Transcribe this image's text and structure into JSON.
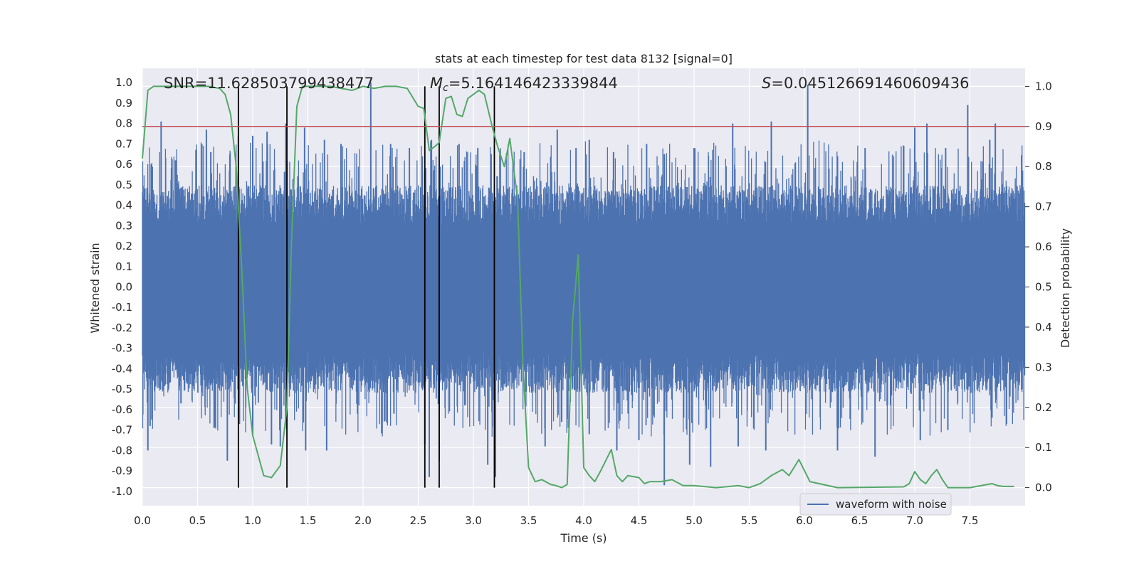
{
  "chart_data": {
    "type": "line",
    "title": "stats at each timestep for test data 8132 [signal=0]",
    "xlabel": "Time (s)",
    "ylabel_left": "Whitened strain",
    "ylabel_right": "Detection probability",
    "xlim": [
      0.0,
      8.0
    ],
    "ylim_left": [
      -1.07,
      1.07
    ],
    "ylim_right": [
      -0.045,
      1.045
    ],
    "x_ticks": [
      "0.0",
      "0.5",
      "1.0",
      "1.5",
      "2.0",
      "2.5",
      "3.0",
      "3.5",
      "4.0",
      "4.5",
      "5.0",
      "5.5",
      "6.0",
      "6.5",
      "7.0",
      "7.5"
    ],
    "left_ticks": [
      "1.0",
      "0.9",
      "0.8",
      "0.7",
      "0.6",
      "0.5",
      "0.4",
      "0.3",
      "0.2",
      "0.1",
      "0.0",
      "-0.1",
      "-0.2",
      "-0.3",
      "-0.4",
      "-0.5",
      "-0.6",
      "-0.7",
      "-0.8",
      "-0.9",
      "-1.0"
    ],
    "right_ticks": [
      "1.0",
      "0.9",
      "0.8",
      "0.7",
      "0.6",
      "0.5",
      "0.4",
      "0.3",
      "0.2",
      "0.1",
      "0.0"
    ],
    "annotations": {
      "snr": "SNR=11.628503799438477",
      "mc_symbol": "M",
      "mc_sub": "c",
      "mc_value": "=5.164146423339844",
      "s_symbol": "S",
      "s_value": "=0.045126691460609436"
    },
    "legend": {
      "label": "waveform with noise",
      "position": "lower-right"
    },
    "threshold": {
      "value": 0.9,
      "axis": "right",
      "color": "#c44e52"
    },
    "vlines": [
      0.87,
      1.31,
      2.56,
      2.69,
      3.19
    ],
    "waveform": {
      "name": "waveform with noise",
      "color": "#4c72b0",
      "note": "dense noise band, envelope approx. +/-0.4 with spikes",
      "spikes": [
        {
          "t": 0.08,
          "v": 0.6
        },
        {
          "t": 0.17,
          "v": 0.81
        },
        {
          "t": 0.3,
          "v": 0.62
        },
        {
          "t": 0.58,
          "v": 0.77
        },
        {
          "t": 0.62,
          "v": 0.66
        },
        {
          "t": 0.87,
          "v": 0.74
        },
        {
          "t": 1.0,
          "v": 0.74
        },
        {
          "t": 1.13,
          "v": 0.76
        },
        {
          "t": 1.3,
          "v": 0.8
        },
        {
          "t": 1.47,
          "v": 0.78
        },
        {
          "t": 1.65,
          "v": 0.72
        },
        {
          "t": 1.8,
          "v": 0.7
        },
        {
          "t": 2.07,
          "v": 1.0
        },
        {
          "t": 2.25,
          "v": 0.7
        },
        {
          "t": 2.42,
          "v": 0.68
        },
        {
          "t": 2.62,
          "v": 0.72
        },
        {
          "t": 2.87,
          "v": 0.7
        },
        {
          "t": 3.04,
          "v": 0.68
        },
        {
          "t": 3.24,
          "v": 0.65
        },
        {
          "t": 3.46,
          "v": 0.66
        },
        {
          "t": 3.76,
          "v": 0.77
        },
        {
          "t": 3.93,
          "v": 0.68
        },
        {
          "t": 4.05,
          "v": 0.72
        },
        {
          "t": 4.27,
          "v": 0.66
        },
        {
          "t": 4.57,
          "v": 0.7
        },
        {
          "t": 4.73,
          "v": 0.65
        },
        {
          "t": 5.0,
          "v": 0.68
        },
        {
          "t": 5.35,
          "v": 0.8
        },
        {
          "t": 5.7,
          "v": 0.81
        },
        {
          "t": 6.03,
          "v": 0.99
        },
        {
          "t": 6.3,
          "v": 0.64
        },
        {
          "t": 6.55,
          "v": 0.68
        },
        {
          "t": 6.9,
          "v": 0.69
        },
        {
          "t": 7.0,
          "v": 0.78
        },
        {
          "t": 7.11,
          "v": 0.8
        },
        {
          "t": 7.28,
          "v": 0.68
        },
        {
          "t": 7.48,
          "v": 0.89
        },
        {
          "t": 7.68,
          "v": 0.72
        },
        {
          "t": 7.73,
          "v": 0.8
        },
        {
          "t": 0.05,
          "v": -0.8
        },
        {
          "t": 0.07,
          "v": -0.68
        },
        {
          "t": 0.35,
          "v": -0.57
        },
        {
          "t": 0.65,
          "v": -0.69
        },
        {
          "t": 0.77,
          "v": -0.85
        },
        {
          "t": 0.88,
          "v": -0.67
        },
        {
          "t": 1.0,
          "v": -0.72
        },
        {
          "t": 1.17,
          "v": -0.77
        },
        {
          "t": 1.25,
          "v": -0.78
        },
        {
          "t": 1.48,
          "v": -0.8
        },
        {
          "t": 1.67,
          "v": -0.8
        },
        {
          "t": 1.95,
          "v": -0.62
        },
        {
          "t": 2.28,
          "v": -0.62
        },
        {
          "t": 2.56,
          "v": -0.77
        },
        {
          "t": 2.6,
          "v": -0.93
        },
        {
          "t": 2.69,
          "v": -0.85
        },
        {
          "t": 3.13,
          "v": -0.87
        },
        {
          "t": 3.2,
          "v": -0.93
        },
        {
          "t": 3.65,
          "v": -0.78
        },
        {
          "t": 3.8,
          "v": -0.66
        },
        {
          "t": 4.05,
          "v": -0.72
        },
        {
          "t": 4.3,
          "v": -0.8
        },
        {
          "t": 4.5,
          "v": -0.75
        },
        {
          "t": 4.73,
          "v": -0.97
        },
        {
          "t": 4.96,
          "v": -0.87
        },
        {
          "t": 5.15,
          "v": -0.88
        },
        {
          "t": 5.4,
          "v": -0.78
        },
        {
          "t": 5.65,
          "v": -0.8
        },
        {
          "t": 6.3,
          "v": -0.8
        },
        {
          "t": 6.64,
          "v": -0.83
        },
        {
          "t": 7.05,
          "v": -0.75
        },
        {
          "t": 7.3,
          "v": -0.7
        },
        {
          "t": 7.7,
          "v": -0.64
        }
      ]
    },
    "probability": {
      "name": "detection probability",
      "color": "#55a868",
      "axis": "right",
      "x": [
        0.0,
        0.05,
        0.1,
        0.2,
        0.4,
        0.6,
        0.7,
        0.75,
        0.8,
        0.85,
        0.9,
        0.95,
        1.0,
        1.05,
        1.1,
        1.17,
        1.25,
        1.31,
        1.35,
        1.4,
        1.45,
        1.55,
        1.7,
        1.9,
        2.0,
        2.1,
        2.2,
        2.3,
        2.4,
        2.5,
        2.55,
        2.6,
        2.65,
        2.69,
        2.75,
        2.8,
        2.85,
        2.9,
        2.95,
        3.0,
        3.05,
        3.1,
        3.17,
        3.22,
        3.28,
        3.33,
        3.4,
        3.45,
        3.5,
        3.56,
        3.62,
        3.7,
        3.75,
        3.8,
        3.85,
        3.9,
        3.95,
        4.0,
        4.05,
        4.1,
        4.15,
        4.25,
        4.3,
        4.35,
        4.4,
        4.5,
        4.55,
        4.6,
        4.7,
        4.8,
        4.9,
        5.0,
        5.2,
        5.4,
        5.5,
        5.6,
        5.7,
        5.8,
        5.86,
        5.95,
        6.05,
        6.3,
        6.9,
        6.95,
        7.0,
        7.05,
        7.1,
        7.15,
        7.2,
        7.25,
        7.3,
        7.35,
        7.5,
        7.6,
        7.7,
        7.75,
        7.8,
        7.9
      ],
      "y": [
        0.82,
        0.99,
        1.0,
        1.0,
        1.0,
        1.0,
        0.995,
        0.98,
        0.93,
        0.8,
        0.55,
        0.25,
        0.13,
        0.08,
        0.03,
        0.025,
        0.055,
        0.2,
        0.6,
        0.95,
        1.0,
        1.0,
        1.0,
        0.99,
        1.0,
        0.995,
        1.0,
        1.0,
        0.995,
        0.95,
        0.945,
        0.84,
        0.85,
        0.86,
        0.97,
        0.975,
        0.93,
        0.925,
        0.97,
        0.98,
        0.99,
        0.98,
        0.9,
        0.85,
        0.8,
        0.87,
        0.72,
        0.3,
        0.05,
        0.015,
        0.02,
        0.008,
        0.005,
        0.0,
        0.008,
        0.42,
        0.58,
        0.05,
        0.03,
        0.015,
        0.04,
        0.095,
        0.03,
        0.015,
        0.03,
        0.025,
        0.01,
        0.015,
        0.015,
        0.02,
        0.005,
        0.005,
        0.0,
        0.005,
        0.0,
        0.01,
        0.03,
        0.045,
        0.03,
        0.07,
        0.015,
        0.0,
        0.002,
        0.01,
        0.04,
        0.02,
        0.01,
        0.03,
        0.045,
        0.02,
        0.0,
        0.0,
        0.0,
        0.005,
        0.01,
        0.005,
        0.003,
        0.003
      ]
    }
  }
}
